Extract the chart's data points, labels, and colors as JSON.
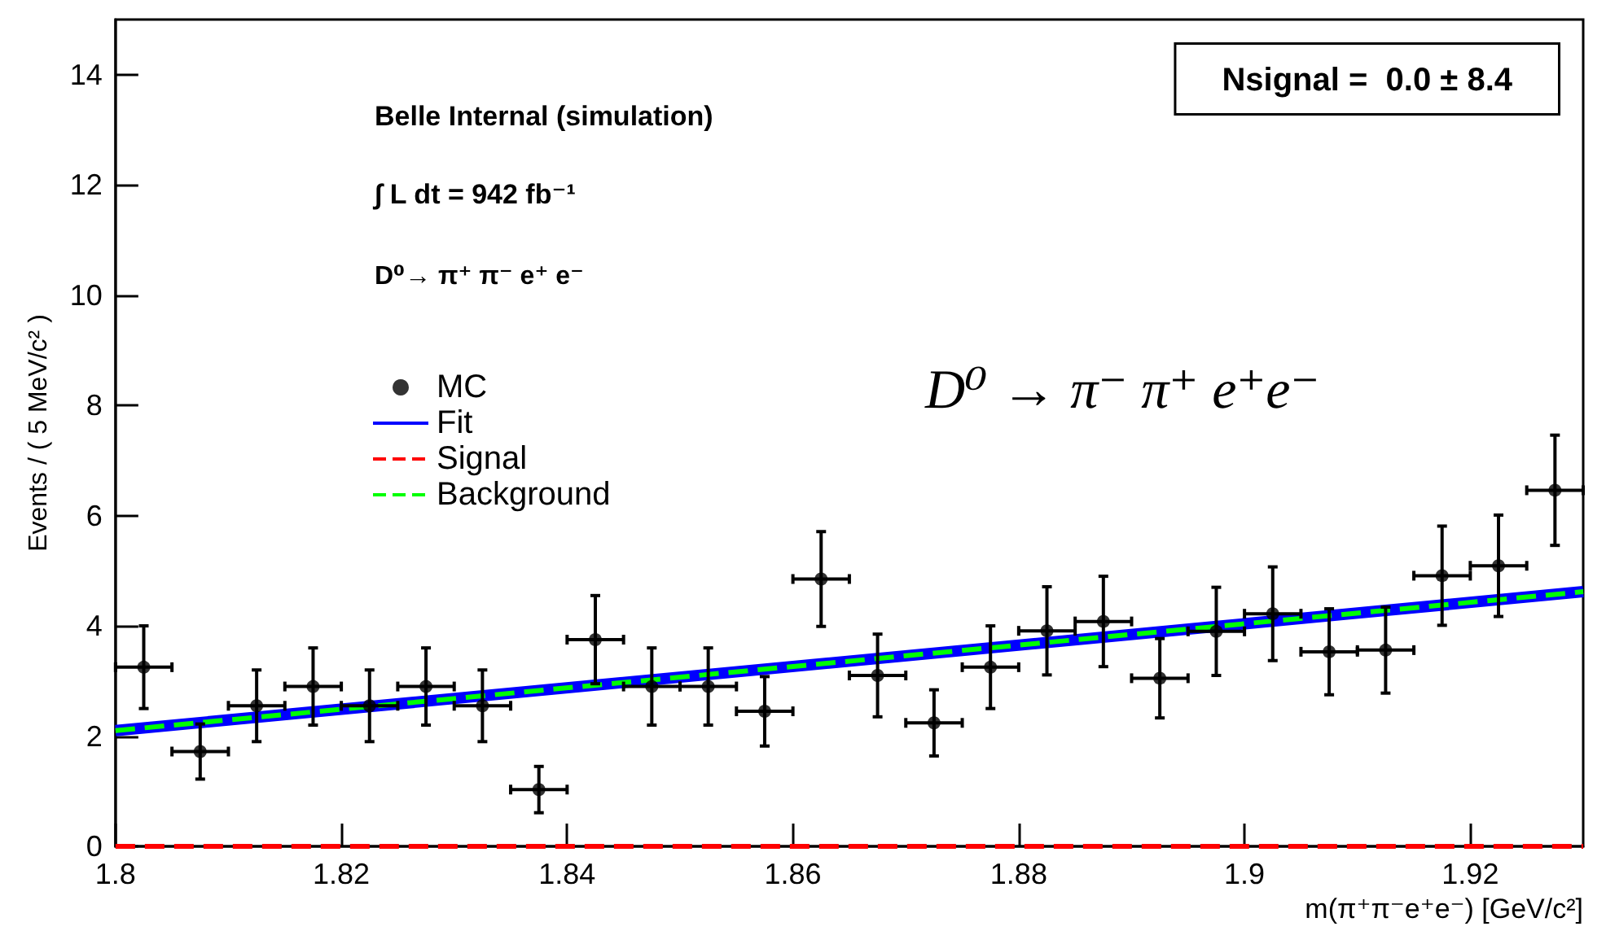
{
  "chart_data": {
    "type": "scatter",
    "xlabel": "m(π⁺π⁻e⁺e⁻) [GeV/c²]",
    "ylabel": "Events / ( 5 MeV/c² )",
    "annotations": [
      "Belle Internal (simulation)",
      "∫ L dt = 942 fb⁻¹",
      "D⁰→ π⁺ π⁻ e⁺ e⁻",
      "Nsignal =  0.0 ± 8.4",
      "D⁰ → π⁻ π⁺ e⁺e⁻"
    ],
    "xlim": [
      1.8,
      1.93
    ],
    "xticks": [
      1.8,
      1.82,
      1.84,
      1.86,
      1.88,
      1.9,
      1.92
    ],
    "ylim": [
      0,
      15
    ],
    "yticks": [
      0,
      2,
      4,
      6,
      8,
      10,
      12,
      14
    ],
    "grid": false,
    "legend": "left",
    "marker": "circle",
    "series": [
      {
        "name": "MC",
        "color": "#000000",
        "x": [
          1.8025,
          1.8075,
          1.8125,
          1.8175,
          1.8225,
          1.8275,
          1.8325,
          1.8375,
          1.8425,
          1.8475,
          1.8525,
          1.8575,
          1.8625,
          1.8675,
          1.8725,
          1.8775,
          1.8825,
          1.8875,
          1.8925,
          1.8975,
          1.9025,
          1.9075,
          1.9125,
          1.9175,
          1.9225,
          1.9275
        ],
        "values": [
          3.25,
          1.72,
          2.55,
          2.9,
          2.55,
          2.9,
          2.55,
          1.03,
          3.75,
          2.9,
          2.9,
          2.45,
          4.85,
          3.1,
          2.24,
          3.25,
          3.91,
          4.08,
          3.05,
          3.9,
          4.22,
          3.53,
          3.56,
          4.91,
          5.09,
          6.46
        ],
        "errors": [
          0.75,
          0.5,
          0.65,
          0.7,
          0.65,
          0.7,
          0.65,
          0.42,
          0.8,
          0.7,
          0.7,
          0.63,
          0.86,
          0.75,
          0.6,
          0.75,
          0.8,
          0.82,
          0.72,
          0.8,
          0.85,
          0.78,
          0.78,
          0.9,
          0.92,
          1.0
        ],
        "xerrors": [
          0.0025,
          0.0025,
          0.0025,
          0.0025,
          0.0025,
          0.0025,
          0.0025,
          0.0025,
          0.0025,
          0.0025,
          0.0025,
          0.0025,
          0.0025,
          0.0025,
          0.0025,
          0.0025,
          0.0025,
          0.0025,
          0.0025,
          0.0025,
          0.0025,
          0.0025,
          0.0025,
          0.0025,
          0.0025,
          0.0025
        ]
      },
      {
        "name": "Fit",
        "type": "line",
        "color": "#0000ff",
        "line_style": "solid",
        "marker": "none",
        "x": [
          1.8,
          1.93
        ],
        "values": [
          2.1,
          4.62
        ]
      },
      {
        "name": "Signal",
        "type": "line",
        "color": "#ff0000",
        "line_style": "dashed",
        "marker": "none",
        "x": [
          1.8,
          1.93
        ],
        "values": [
          0,
          0
        ]
      },
      {
        "name": "Background",
        "type": "line",
        "color": "#00ff00",
        "line_style": "dashed",
        "marker": "none",
        "x": [
          1.8,
          1.93
        ],
        "values": [
          2.1,
          4.62
        ]
      }
    ]
  }
}
